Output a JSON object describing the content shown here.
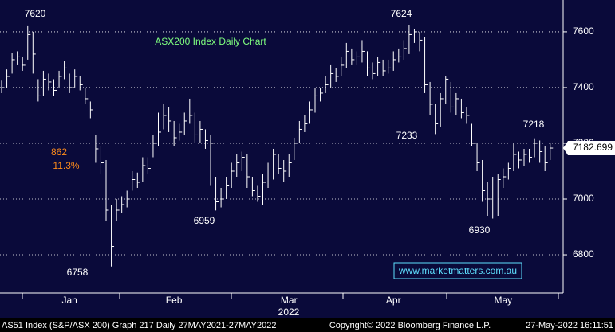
{
  "chart_data": {
    "type": "ohlc",
    "title": "ASX200 Index Daily Chart",
    "categories": [
      null,
      null,
      null,
      null,
      null,
      null,
      null,
      null,
      null,
      null,
      null,
      null,
      null,
      "Jan",
      null,
      null,
      null,
      null,
      null,
      null,
      null,
      null,
      null,
      null,
      null,
      null,
      null,
      null,
      null,
      null,
      null,
      null,
      null,
      "Feb",
      null,
      null,
      null,
      null,
      null,
      null,
      null,
      null,
      null,
      null,
      null,
      null,
      null,
      null,
      null,
      null,
      null,
      null,
      null,
      null,
      null,
      "Mar",
      null,
      null,
      null,
      null,
      null,
      null,
      null,
      null,
      null,
      null,
      null,
      null,
      null,
      null,
      null,
      null,
      null,
      null,
      null,
      "Apr",
      null,
      null,
      null,
      null,
      null,
      null,
      null,
      null,
      null,
      null,
      null,
      null,
      null,
      null,
      null,
      null,
      null,
      null,
      null,
      null,
      "May",
      null,
      null,
      null,
      null,
      null,
      null,
      null,
      null,
      null
    ],
    "x_sublabel": "2022",
    "high": [
      7425,
      7465,
      7525,
      7530,
      7510,
      7620,
      7600,
      7430,
      7460,
      7450,
      7430,
      7460,
      7495,
      7450,
      7465,
      7440,
      7400,
      7350,
      7230,
      7190,
      7140,
      6980,
      7000,
      7010,
      7030,
      7100,
      7095,
      7150,
      7150,
      7230,
      7310,
      7340,
      7330,
      7280,
      7270,
      7310,
      7360,
      7310,
      7280,
      7250,
      7230,
      7080,
      7040,
      7080,
      7130,
      7160,
      7170,
      7160,
      7080,
      7050,
      7090,
      7130,
      7180,
      7160,
      7140,
      7160,
      7220,
      7280,
      7300,
      7350,
      7400,
      7400,
      7440,
      7480,
      7470,
      7510,
      7560,
      7540,
      7530,
      7570,
      7530,
      7490,
      7510,
      7500,
      7500,
      7530,
      7540,
      7570,
      7624,
      7610,
      7600,
      7580,
      7420,
      7340,
      7380,
      7440,
      7420,
      7380,
      7360,
      7330,
      7270,
      7200,
      7140,
      7060,
      7080,
      7090,
      7110,
      7130,
      7200,
      7170,
      7180,
      7180,
      7218,
      7210,
      7190,
      7200
    ],
    "low": [
      7380,
      7400,
      7450,
      7480,
      7460,
      7500,
      7450,
      7350,
      7370,
      7390,
      7370,
      7400,
      7430,
      7380,
      7400,
      7390,
      7340,
      7290,
      7130,
      7090,
      6920,
      6758,
      6920,
      6950,
      6970,
      7030,
      7040,
      7060,
      7090,
      7150,
      7190,
      7250,
      7240,
      7190,
      7210,
      7230,
      7270,
      7200,
      7200,
      7180,
      7050,
      6959,
      6970,
      7000,
      7040,
      7080,
      7100,
      7040,
      7010,
      6990,
      6980,
      7040,
      7070,
      7090,
      7060,
      7080,
      7140,
      7200,
      7240,
      7270,
      7310,
      7350,
      7380,
      7400,
      7420,
      7440,
      7470,
      7480,
      7480,
      7490,
      7440,
      7430,
      7440,
      7440,
      7450,
      7460,
      7490,
      7500,
      7520,
      7560,
      7530,
      7380,
      7300,
      7233,
      7260,
      7340,
      7310,
      7300,
      7290,
      7270,
      7190,
      7100,
      6990,
      6940,
      6930,
      6940,
      7040,
      7070,
      7100,
      7110,
      7120,
      7130,
      7150,
      7130,
      7100,
      7140
    ],
    "close": [
      7400,
      7440,
      7500,
      7510,
      7480,
      7590,
      7520,
      7370,
      7430,
      7420,
      7390,
      7440,
      7470,
      7400,
      7440,
      7410,
      7360,
      7320,
      7180,
      7130,
      6960,
      6830,
      6960,
      6980,
      7000,
      7070,
      7060,
      7120,
      7110,
      7200,
      7240,
      7300,
      7280,
      7220,
      7240,
      7280,
      7300,
      7230,
      7250,
      7210,
      7200,
      6990,
      7000,
      7050,
      7100,
      7130,
      7150,
      7080,
      7030,
      7010,
      7060,
      7090,
      7160,
      7110,
      7100,
      7130,
      7200,
      7250,
      7270,
      7320,
      7370,
      7380,
      7410,
      7450,
      7440,
      7480,
      7530,
      7500,
      7510,
      7530,
      7470,
      7450,
      7490,
      7460,
      7470,
      7500,
      7510,
      7540,
      7590,
      7600,
      7570,
      7410,
      7340,
      7270,
      7360,
      7430,
      7330,
      7360,
      7310,
      7300,
      7200,
      7130,
      7030,
      7000,
      6950,
      7070,
      7080,
      7110,
      7160,
      7140,
      7160,
      7150,
      7200,
      7170,
      7130,
      7182.699
    ],
    "color": "#ffffff",
    "ylim": [
      6663,
      7714
    ],
    "yticks": [
      6800,
      7000,
      7200,
      7400,
      7600
    ],
    "grid": true,
    "last_price": 7182.699,
    "annotations": [
      "7620",
      "6758",
      "6959",
      "7624",
      "7233",
      "7218",
      "6930"
    ],
    "move": {
      "points": "862",
      "percent": "11.3%"
    },
    "watermark": "www.marketmatters.com.au"
  },
  "footer": {
    "left": "AS51 Index (S&P/ASX 200) Graph 217  Daily 27MAY2021-27MAY2022",
    "center": "Copyright© 2022 Bloomberg Finance L.P.",
    "right": "27-May-2022 16:11:51"
  }
}
